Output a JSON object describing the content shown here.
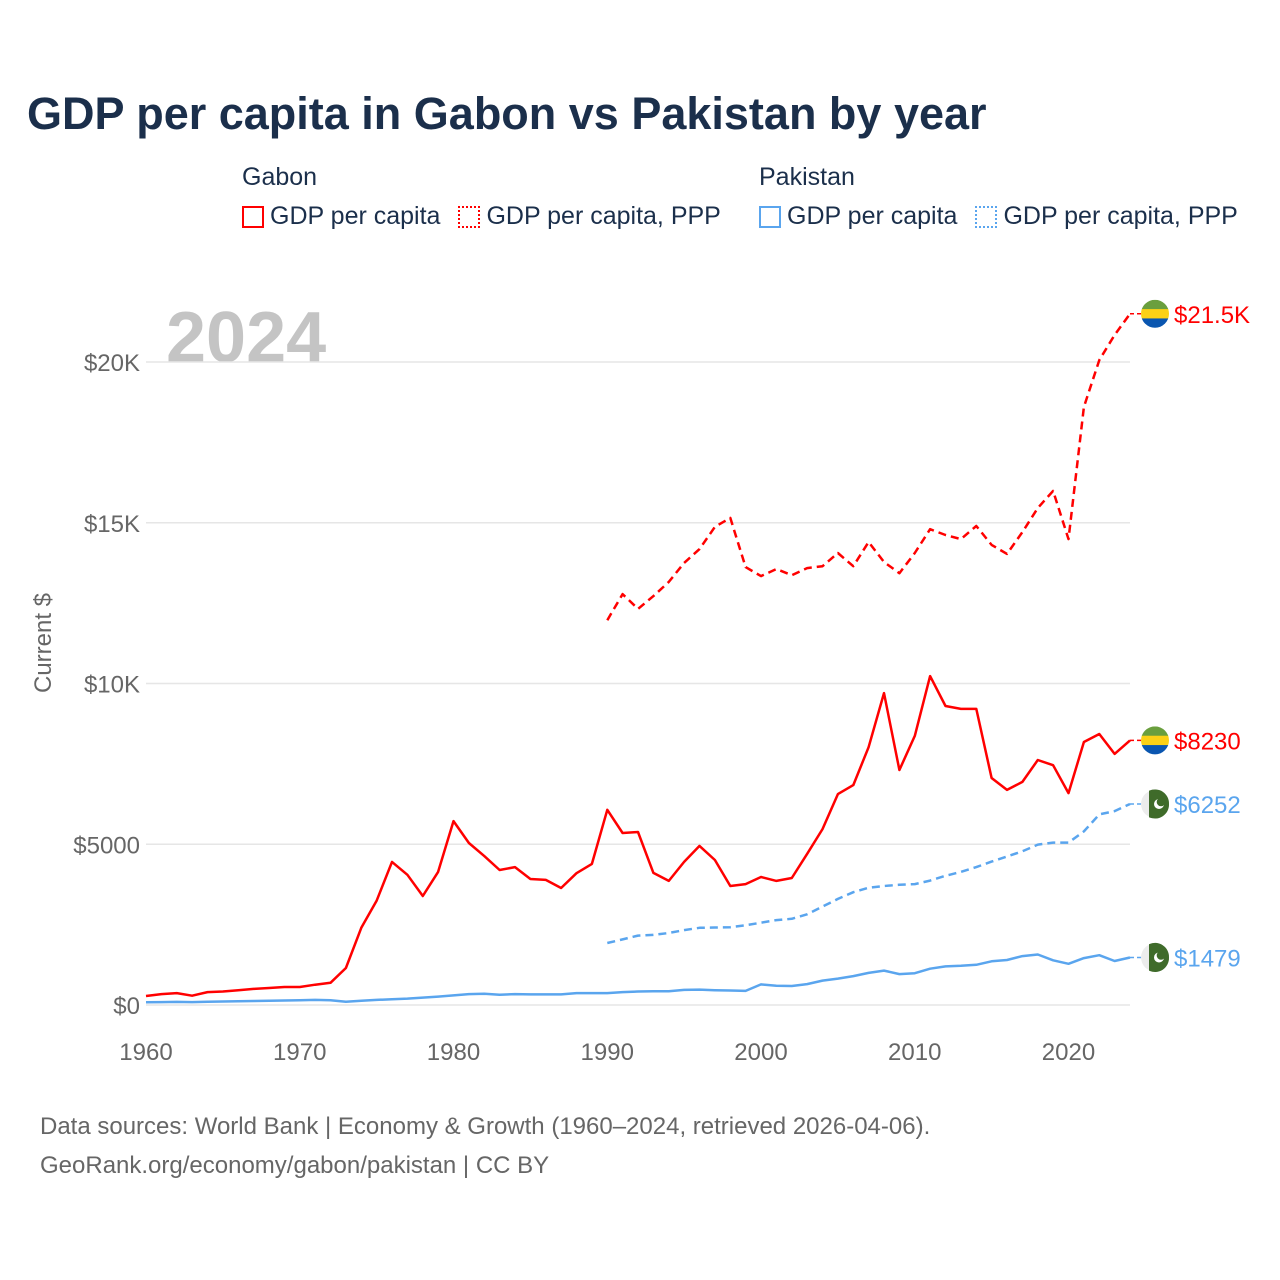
{
  "title": "GDP per capita in Gabon vs Pakistan by year",
  "legend": [
    {
      "group": "Gabon",
      "items": [
        {
          "label": "GDP per capita",
          "style": "solid"
        },
        {
          "label": "GDP per capita, PPP",
          "style": "dotted"
        }
      ],
      "color": "#ff0000"
    },
    {
      "group": "Pakistan",
      "items": [
        {
          "label": "GDP per capita",
          "style": "solid"
        },
        {
          "label": "GDP per capita, PPP",
          "style": "dotted"
        }
      ],
      "color": "#5aa5ee"
    }
  ],
  "year_watermark": "2024",
  "source": {
    "line1": "Data sources: World Bank | Economy & Growth (1960–2024, retrieved 2026-04-06).",
    "line2": "GeoRank.org/economy/gabon/pakistan | CC BY"
  },
  "chart_data": {
    "type": "line",
    "title": "GDP per capita in Gabon vs Pakistan by year",
    "xlabel": "",
    "ylabel": "Current $",
    "xlim": [
      1960,
      2024
    ],
    "ylim": [
      0,
      21500
    ],
    "x_ticks": [
      1960,
      1970,
      1980,
      1990,
      2000,
      2010,
      2020
    ],
    "x_tick_labels": [
      "1960",
      "1970",
      "1980",
      "1990",
      "2000",
      "2010",
      "2020"
    ],
    "y_ticks": [
      0,
      5000,
      10000,
      15000,
      20000
    ],
    "y_tick_labels": [
      "$0",
      "$5000",
      "$10K",
      "$15K",
      "$20K"
    ],
    "grid": true,
    "series": [
      {
        "name": "Gabon GDP per capita",
        "color": "#ff0000",
        "dash": false,
        "start": 1960,
        "end_label": "$8230",
        "flag": "gabon",
        "values": [
          280,
          340,
          370,
          290,
          400,
          420,
          460,
          500,
          530,
          560,
          560,
          630,
          690,
          1150,
          2400,
          3240,
          4450,
          4050,
          3390,
          4140,
          5720,
          5040,
          4630,
          4200,
          4290,
          3920,
          3890,
          3640,
          4100,
          4390,
          6070,
          5350,
          5380,
          4110,
          3860,
          4450,
          4950,
          4510,
          3700,
          3760,
          3980,
          3860,
          3950,
          4700,
          5470,
          6560,
          6840,
          8020,
          9700,
          7310,
          8370,
          10230,
          9300,
          9210,
          9210,
          7060,
          6690,
          6940,
          7620,
          7460,
          6590,
          8180,
          8430,
          7810,
          8230
        ]
      },
      {
        "name": "Gabon GDP per capita, PPP",
        "color": "#ff0000",
        "dash": true,
        "start": 1990,
        "end_label": "$21.5K",
        "flag": "gabon",
        "values": [
          11970,
          12780,
          12320,
          12720,
          13160,
          13750,
          14180,
          14870,
          15150,
          13620,
          13340,
          13560,
          13370,
          13590,
          13650,
          14060,
          13650,
          14400,
          13780,
          13430,
          14060,
          14800,
          14620,
          14490,
          14900,
          14310,
          14030,
          14710,
          15460,
          15990,
          14490,
          18600,
          20060,
          20840,
          21500
        ]
      },
      {
        "name": "Pakistan GDP per capita",
        "color": "#5aa5ee",
        "dash": false,
        "start": 1960,
        "end_label": "$1479",
        "flag": "pakistan",
        "values": [
          85,
          90,
          95,
          90,
          100,
          110,
          115,
          125,
          130,
          140,
          150,
          160,
          150,
          100,
          130,
          160,
          180,
          200,
          230,
          260,
          300,
          340,
          350,
          320,
          340,
          330,
          330,
          330,
          370,
          370,
          370,
          400,
          420,
          430,
          430,
          470,
          480,
          460,
          450,
          440,
          640,
          600,
          590,
          650,
          760,
          820,
          900,
          1000,
          1070,
          960,
          990,
          1130,
          1200,
          1220,
          1250,
          1360,
          1400,
          1520,
          1570,
          1390,
          1280,
          1460,
          1550,
          1370,
          1479
        ]
      },
      {
        "name": "Pakistan GDP per capita, PPP",
        "color": "#5aa5ee",
        "dash": true,
        "start": 1990,
        "end_label": "$6252",
        "flag": "pakistan",
        "values": [
          1930,
          2040,
          2160,
          2180,
          2240,
          2330,
          2400,
          2410,
          2420,
          2480,
          2560,
          2640,
          2680,
          2820,
          3060,
          3300,
          3510,
          3650,
          3700,
          3740,
          3760,
          3870,
          4020,
          4140,
          4290,
          4460,
          4620,
          4780,
          4990,
          5050,
          5050,
          5400,
          5930,
          6030,
          6252
        ]
      }
    ]
  }
}
